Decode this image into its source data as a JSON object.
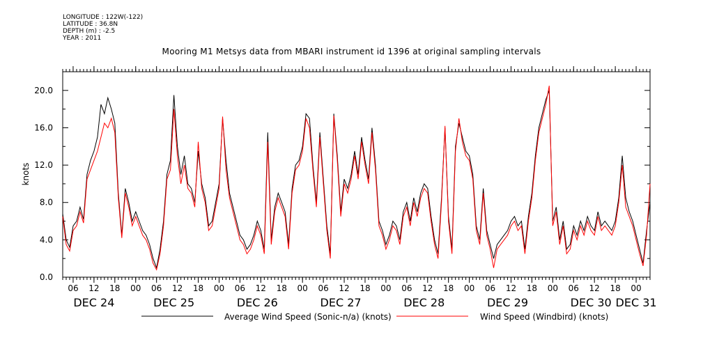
{
  "meta": {
    "longitude": "LONGITUDE : 122W(-122)",
    "latitude": "LATITUDE : 36.8N",
    "depth": "DEPTH (m) : -2.5",
    "year": "YEAR : 2011"
  },
  "chart_data": {
    "type": "line",
    "title": "Mooring M1 Metsys data from MBARI instrument id 1396 at original sampling intervals",
    "ylabel": "knots",
    "xlabel": "",
    "ylim": [
      0,
      22
    ],
    "xlim": [
      3,
      172
    ],
    "yticks": [
      0,
      4,
      8,
      12,
      16,
      20
    ],
    "ytick_labels": [
      "0.0",
      "4.0",
      "8.0",
      "12.0",
      "16.0",
      "20.0"
    ],
    "xtick_hours": [
      6,
      12,
      18,
      24,
      30,
      36,
      42,
      48,
      54,
      60,
      66,
      72,
      78,
      84,
      90,
      96,
      102,
      108,
      114,
      120,
      126,
      132,
      138,
      144,
      150,
      156,
      162,
      168
    ],
    "xtick_labels": [
      "06",
      "12",
      "18",
      "00",
      "06",
      "12",
      "18",
      "00",
      "06",
      "12",
      "18",
      "00",
      "06",
      "12",
      "18",
      "00",
      "06",
      "12",
      "18",
      "00",
      "06",
      "12",
      "18",
      "00",
      "06",
      "12",
      "18",
      "00"
    ],
    "date_labels": [
      {
        "label": "DEC 24",
        "hour": 12
      },
      {
        "label": "DEC 25",
        "hour": 35
      },
      {
        "label": "DEC 26",
        "hour": 59
      },
      {
        "label": "DEC 27",
        "hour": 83
      },
      {
        "label": "DEC 28",
        "hour": 107
      },
      {
        "label": "DEC 29",
        "hour": 131
      },
      {
        "label": "DEC 30",
        "hour": 155
      },
      {
        "label": "DEC 31",
        "hour": 168
      }
    ],
    "x_unit": "hours since DEC 24 00:00",
    "grid": false,
    "legend_placement": "bottom",
    "series": [
      {
        "name": "Average Wind Speed (Sonic-n/a) (knots)",
        "color": "#000000",
        "x": [
          3,
          4,
          5,
          6,
          7,
          8,
          9,
          10,
          11,
          12,
          13,
          14,
          15,
          16,
          17,
          18,
          19,
          20,
          21,
          22,
          23,
          24,
          25,
          26,
          27,
          28,
          29,
          30,
          31,
          32,
          33,
          34,
          35,
          36,
          37,
          38,
          39,
          40,
          41,
          42,
          43,
          44,
          45,
          46,
          47,
          48,
          49,
          50,
          51,
          52,
          53,
          54,
          55,
          56,
          57,
          58,
          59,
          60,
          61,
          62,
          63,
          64,
          65,
          66,
          67,
          68,
          69,
          70,
          71,
          72,
          73,
          74,
          75,
          76,
          77,
          78,
          79,
          80,
          81,
          82,
          83,
          84,
          85,
          86,
          87,
          88,
          89,
          90,
          91,
          92,
          93,
          94,
          95,
          96,
          97,
          98,
          99,
          100,
          101,
          102,
          103,
          104,
          105,
          106,
          107,
          108,
          109,
          110,
          111,
          112,
          113,
          114,
          115,
          116,
          117,
          118,
          119,
          120,
          121,
          122,
          123,
          124,
          125,
          126,
          127,
          128,
          129,
          130,
          131,
          132,
          133,
          134,
          135,
          136,
          137,
          138,
          139,
          140,
          141,
          142,
          143,
          144,
          145,
          146,
          147,
          148,
          149,
          150,
          151,
          152,
          153,
          154,
          155,
          156,
          157,
          158,
          159,
          160,
          161,
          162,
          163,
          164,
          165,
          166,
          167,
          168,
          169,
          170,
          171,
          172
        ],
        "y": [
          6.8,
          4.0,
          3.2,
          5.5,
          6.0,
          7.5,
          6.2,
          11.0,
          12.5,
          13.5,
          15.0,
          18.5,
          17.5,
          19.2,
          18.0,
          16.5,
          9.0,
          4.5,
          9.5,
          8.0,
          6.0,
          7.0,
          6.0,
          5.0,
          4.5,
          3.5,
          2.0,
          1.0,
          3.0,
          6.0,
          11.0,
          12.5,
          19.5,
          14.0,
          11.0,
          13.0,
          10.0,
          9.5,
          8.0,
          13.5,
          10.0,
          8.5,
          5.5,
          6.0,
          8.0,
          10.0,
          17.0,
          12.5,
          9.0,
          7.5,
          6.0,
          4.5,
          4.0,
          3.0,
          3.5,
          4.5,
          6.0,
          5.0,
          3.0,
          15.5,
          4.0,
          7.5,
          9.0,
          8.0,
          7.0,
          3.5,
          9.5,
          12.0,
          12.5,
          14.0,
          17.5,
          17.0,
          12.0,
          8.0,
          15.5,
          10.5,
          5.5,
          2.5,
          17.5,
          13.0,
          7.0,
          10.5,
          9.5,
          11.0,
          13.5,
          11.0,
          15.0,
          12.5,
          10.5,
          16.0,
          12.0,
          6.0,
          5.0,
          3.5,
          4.5,
          6.0,
          5.5,
          4.0,
          7.0,
          8.0,
          6.0,
          8.5,
          7.0,
          9.0,
          10.0,
          9.5,
          6.5,
          4.0,
          2.5,
          8.5,
          16.0,
          6.5,
          3.0,
          14.0,
          16.5,
          15.0,
          13.5,
          13.0,
          11.0,
          5.5,
          4.0,
          9.5,
          5.0,
          3.5,
          2.0,
          3.5,
          4.0,
          4.5,
          5.0,
          6.0,
          6.5,
          5.5,
          6.0,
          3.0,
          6.5,
          9.0,
          13.0,
          16.0,
          17.5,
          19.0,
          20.0,
          6.0,
          7.5,
          4.0,
          6.0,
          3.0,
          3.5,
          5.5,
          4.5,
          6.0,
          5.0,
          6.5,
          5.5,
          5.0,
          7.0,
          5.5,
          6.0,
          5.5,
          5.0,
          6.0,
          8.5,
          13.0,
          8.5,
          7.0,
          6.0,
          4.5,
          3.0,
          1.5,
          5.0,
          8.0
        ]
      },
      {
        "name": "Wind Speed (Windbird) (knots)",
        "color": "#ff0000",
        "x": [
          3,
          4,
          5,
          6,
          7,
          8,
          9,
          10,
          11,
          12,
          13,
          14,
          15,
          16,
          17,
          18,
          19,
          20,
          21,
          22,
          23,
          24,
          25,
          26,
          27,
          28,
          29,
          30,
          31,
          32,
          33,
          34,
          35,
          36,
          37,
          38,
          39,
          40,
          41,
          42,
          43,
          44,
          45,
          46,
          47,
          48,
          49,
          50,
          51,
          52,
          53,
          54,
          55,
          56,
          57,
          58,
          59,
          60,
          61,
          62,
          63,
          64,
          65,
          66,
          67,
          68,
          69,
          70,
          71,
          72,
          73,
          74,
          75,
          76,
          77,
          78,
          79,
          80,
          81,
          82,
          83,
          84,
          85,
          86,
          87,
          88,
          89,
          90,
          91,
          92,
          93,
          94,
          95,
          96,
          97,
          98,
          99,
          100,
          101,
          102,
          103,
          104,
          105,
          106,
          107,
          108,
          109,
          110,
          111,
          112,
          113,
          114,
          115,
          116,
          117,
          118,
          119,
          120,
          121,
          122,
          123,
          124,
          125,
          126,
          127,
          128,
          129,
          130,
          131,
          132,
          133,
          134,
          135,
          136,
          137,
          138,
          139,
          140,
          141,
          142,
          143,
          144,
          145,
          146,
          147,
          148,
          149,
          150,
          151,
          152,
          153,
          154,
          155,
          156,
          157,
          158,
          159,
          160,
          161,
          162,
          163,
          164,
          165,
          166,
          167,
          168,
          169,
          170,
          171,
          172
        ],
        "y": [
          6.5,
          3.5,
          2.8,
          5.0,
          5.5,
          7.0,
          5.8,
          10.5,
          11.5,
          12.5,
          13.5,
          15.0,
          16.5,
          16.0,
          17.0,
          15.5,
          8.5,
          4.2,
          9.0,
          7.5,
          5.5,
          6.5,
          5.5,
          4.5,
          4.0,
          3.0,
          1.5,
          0.8,
          2.5,
          5.5,
          10.5,
          11.5,
          18.0,
          13.0,
          10.0,
          12.0,
          9.5,
          9.0,
          7.5,
          14.5,
          9.5,
          8.0,
          5.0,
          5.5,
          7.5,
          9.5,
          17.2,
          11.5,
          8.5,
          7.0,
          5.5,
          4.0,
          3.5,
          2.5,
          3.0,
          4.0,
          5.5,
          4.5,
          2.5,
          14.5,
          3.5,
          7.0,
          8.5,
          7.5,
          6.5,
          3.0,
          9.0,
          11.5,
          12.0,
          13.5,
          17.0,
          16.0,
          11.5,
          7.5,
          15.0,
          10.0,
          5.0,
          2.0,
          17.3,
          12.5,
          6.5,
          10.0,
          9.0,
          10.5,
          13.0,
          10.5,
          14.5,
          12.0,
          10.0,
          15.5,
          11.5,
          5.5,
          4.5,
          3.0,
          4.0,
          5.5,
          5.0,
          3.5,
          6.5,
          7.5,
          5.5,
          8.0,
          6.5,
          8.5,
          9.5,
          9.0,
          6.0,
          3.5,
          2.0,
          8.0,
          16.2,
          6.0,
          2.5,
          13.5,
          17.0,
          14.5,
          13.0,
          12.5,
          10.5,
          5.0,
          3.5,
          9.0,
          4.5,
          3.0,
          1.0,
          3.0,
          3.5,
          4.0,
          4.5,
          5.5,
          6.0,
          5.0,
          5.5,
          2.5,
          6.0,
          8.5,
          12.5,
          15.5,
          17.0,
          18.5,
          20.5,
          5.5,
          7.0,
          3.5,
          5.5,
          2.5,
          3.0,
          5.0,
          4.0,
          5.5,
          4.5,
          6.0,
          5.0,
          4.5,
          6.5,
          5.0,
          5.5,
          5.0,
          4.5,
          5.5,
          8.0,
          12.0,
          7.5,
          6.5,
          5.5,
          4.0,
          2.5,
          1.2,
          4.5,
          10.0
        ]
      }
    ]
  }
}
